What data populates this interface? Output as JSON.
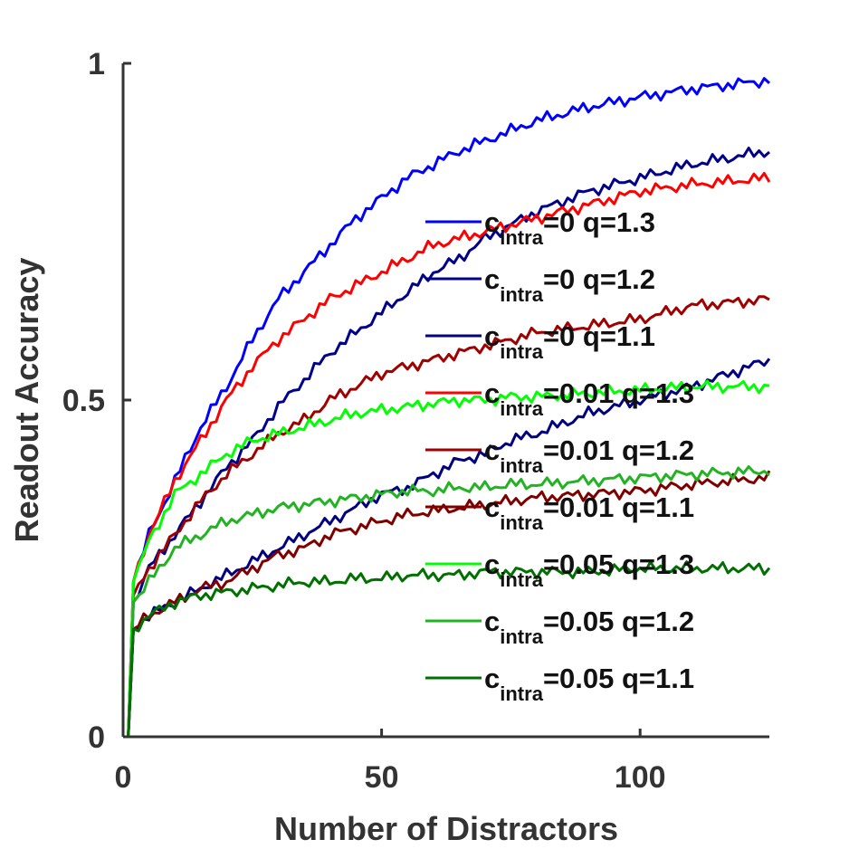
{
  "chart_data": {
    "type": "line",
    "title": "",
    "xlabel": "Number of Distractors",
    "ylabel": "Readout Accuracy",
    "xlim": [
      0,
      125
    ],
    "ylim": [
      0,
      1
    ],
    "xticks": [
      0,
      50,
      100
    ],
    "yticks": [
      0,
      0.5,
      1
    ],
    "grid": false,
    "legend_placement": "right",
    "series": [
      {
        "name_main": "c",
        "name_sub": "intra",
        "name_rest": "=0 q=1.3",
        "color": "#0000ff",
        "points": [
          [
            1,
            0
          ],
          [
            2,
            0.23
          ],
          [
            5,
            0.3
          ],
          [
            10,
            0.38
          ],
          [
            15,
            0.46
          ],
          [
            20,
            0.52
          ],
          [
            25,
            0.59
          ],
          [
            30,
            0.65
          ],
          [
            35,
            0.69
          ],
          [
            40,
            0.73
          ],
          [
            45,
            0.77
          ],
          [
            50,
            0.8
          ],
          [
            55,
            0.83
          ],
          [
            60,
            0.85
          ],
          [
            65,
            0.87
          ],
          [
            70,
            0.885
          ],
          [
            75,
            0.9
          ],
          [
            80,
            0.915
          ],
          [
            90,
            0.935
          ],
          [
            100,
            0.95
          ],
          [
            110,
            0.962
          ],
          [
            125,
            0.975
          ]
        ]
      },
      {
        "name_main": "c",
        "name_sub": "intra",
        "name_rest": "=0 q=1.2",
        "color": "#00008b",
        "points": [
          [
            1,
            0
          ],
          [
            2,
            0.2
          ],
          [
            5,
            0.25
          ],
          [
            10,
            0.3
          ],
          [
            15,
            0.35
          ],
          [
            20,
            0.4
          ],
          [
            25,
            0.44
          ],
          [
            30,
            0.49
          ],
          [
            35,
            0.53
          ],
          [
            40,
            0.57
          ],
          [
            45,
            0.6
          ],
          [
            50,
            0.63
          ],
          [
            55,
            0.66
          ],
          [
            60,
            0.69
          ],
          [
            65,
            0.71
          ],
          [
            70,
            0.74
          ],
          [
            75,
            0.76
          ],
          [
            80,
            0.78
          ],
          [
            90,
            0.81
          ],
          [
            100,
            0.83
          ],
          [
            110,
            0.85
          ],
          [
            125,
            0.87
          ]
        ]
      },
      {
        "name_main": "c",
        "name_sub": "intra",
        "name_rest": "=0 q=1.1",
        "color": "#000080",
        "points": [
          [
            1,
            0
          ],
          [
            2,
            0.16
          ],
          [
            5,
            0.18
          ],
          [
            10,
            0.2
          ],
          [
            15,
            0.22
          ],
          [
            20,
            0.24
          ],
          [
            25,
            0.26
          ],
          [
            30,
            0.28
          ],
          [
            35,
            0.3
          ],
          [
            40,
            0.32
          ],
          [
            45,
            0.34
          ],
          [
            50,
            0.36
          ],
          [
            55,
            0.37
          ],
          [
            60,
            0.39
          ],
          [
            65,
            0.41
          ],
          [
            70,
            0.42
          ],
          [
            75,
            0.44
          ],
          [
            80,
            0.45
          ],
          [
            90,
            0.48
          ],
          [
            100,
            0.5
          ],
          [
            110,
            0.52
          ],
          [
            125,
            0.56
          ]
        ]
      },
      {
        "name_main": "c",
        "name_sub": "intra",
        "name_rest": "=0.01 q=1.3",
        "color": "#ff0000",
        "points": [
          [
            1,
            0
          ],
          [
            2,
            0.23
          ],
          [
            5,
            0.3
          ],
          [
            10,
            0.38
          ],
          [
            15,
            0.44
          ],
          [
            20,
            0.5
          ],
          [
            25,
            0.55
          ],
          [
            30,
            0.59
          ],
          [
            35,
            0.62
          ],
          [
            40,
            0.65
          ],
          [
            45,
            0.67
          ],
          [
            50,
            0.69
          ],
          [
            55,
            0.71
          ],
          [
            60,
            0.73
          ],
          [
            65,
            0.74
          ],
          [
            70,
            0.75
          ],
          [
            75,
            0.76
          ],
          [
            80,
            0.77
          ],
          [
            90,
            0.79
          ],
          [
            100,
            0.81
          ],
          [
            110,
            0.82
          ],
          [
            125,
            0.83
          ]
        ]
      },
      {
        "name_main": "c",
        "name_sub": "intra",
        "name_rest": "=0.01 q=1.2",
        "color": "#a00000",
        "points": [
          [
            1,
            0
          ],
          [
            2,
            0.21
          ],
          [
            5,
            0.25
          ],
          [
            10,
            0.3
          ],
          [
            15,
            0.35
          ],
          [
            20,
            0.39
          ],
          [
            25,
            0.42
          ],
          [
            30,
            0.45
          ],
          [
            35,
            0.47
          ],
          [
            40,
            0.5
          ],
          [
            45,
            0.52
          ],
          [
            50,
            0.54
          ],
          [
            55,
            0.55
          ],
          [
            60,
            0.56
          ],
          [
            65,
            0.57
          ],
          [
            70,
            0.58
          ],
          [
            75,
            0.59
          ],
          [
            80,
            0.6
          ],
          [
            90,
            0.61
          ],
          [
            100,
            0.62
          ],
          [
            110,
            0.64
          ],
          [
            125,
            0.65
          ]
        ]
      },
      {
        "name_main": "c",
        "name_sub": "intra",
        "name_rest": "=0.01 q=1.1",
        "color": "#800000",
        "points": [
          [
            1,
            0
          ],
          [
            2,
            0.16
          ],
          [
            5,
            0.18
          ],
          [
            10,
            0.2
          ],
          [
            15,
            0.22
          ],
          [
            20,
            0.23
          ],
          [
            25,
            0.25
          ],
          [
            30,
            0.27
          ],
          [
            35,
            0.28
          ],
          [
            40,
            0.3
          ],
          [
            45,
            0.31
          ],
          [
            50,
            0.32
          ],
          [
            55,
            0.33
          ],
          [
            60,
            0.335
          ],
          [
            65,
            0.34
          ],
          [
            70,
            0.345
          ],
          [
            75,
            0.35
          ],
          [
            80,
            0.355
          ],
          [
            90,
            0.36
          ],
          [
            100,
            0.365
          ],
          [
            110,
            0.375
          ],
          [
            125,
            0.385
          ]
        ]
      },
      {
        "name_main": "c",
        "name_sub": "intra",
        "name_rest": "=0.05 q=1.3",
        "color": "#00ff00",
        "points": [
          [
            1,
            0
          ],
          [
            2,
            0.23
          ],
          [
            5,
            0.29
          ],
          [
            10,
            0.36
          ],
          [
            15,
            0.39
          ],
          [
            20,
            0.42
          ],
          [
            25,
            0.44
          ],
          [
            30,
            0.45
          ],
          [
            35,
            0.46
          ],
          [
            40,
            0.47
          ],
          [
            45,
            0.48
          ],
          [
            50,
            0.485
          ],
          [
            55,
            0.49
          ],
          [
            60,
            0.495
          ],
          [
            65,
            0.5
          ],
          [
            70,
            0.5
          ],
          [
            75,
            0.505
          ],
          [
            80,
            0.505
          ],
          [
            90,
            0.51
          ],
          [
            100,
            0.515
          ],
          [
            110,
            0.52
          ],
          [
            125,
            0.52
          ]
        ]
      },
      {
        "name_main": "c",
        "name_sub": "intra",
        "name_rest": "=0.05 q=1.2",
        "color": "#22b322",
        "points": [
          [
            1,
            0
          ],
          [
            2,
            0.2
          ],
          [
            5,
            0.23
          ],
          [
            10,
            0.28
          ],
          [
            15,
            0.3
          ],
          [
            20,
            0.32
          ],
          [
            25,
            0.33
          ],
          [
            30,
            0.34
          ],
          [
            35,
            0.345
          ],
          [
            40,
            0.35
          ],
          [
            45,
            0.355
          ],
          [
            50,
            0.36
          ],
          [
            55,
            0.365
          ],
          [
            60,
            0.365
          ],
          [
            65,
            0.37
          ],
          [
            70,
            0.37
          ],
          [
            75,
            0.375
          ],
          [
            80,
            0.375
          ],
          [
            90,
            0.38
          ],
          [
            100,
            0.385
          ],
          [
            110,
            0.39
          ],
          [
            125,
            0.395
          ]
        ]
      },
      {
        "name_main": "c",
        "name_sub": "intra",
        "name_rest": "=0.05 q=1.1",
        "color": "#007000",
        "points": [
          [
            1,
            0
          ],
          [
            2,
            0.16
          ],
          [
            5,
            0.18
          ],
          [
            10,
            0.2
          ],
          [
            15,
            0.21
          ],
          [
            20,
            0.215
          ],
          [
            25,
            0.22
          ],
          [
            30,
            0.225
          ],
          [
            35,
            0.23
          ],
          [
            40,
            0.23
          ],
          [
            45,
            0.235
          ],
          [
            50,
            0.235
          ],
          [
            55,
            0.24
          ],
          [
            60,
            0.24
          ],
          [
            65,
            0.24
          ],
          [
            70,
            0.245
          ],
          [
            75,
            0.245
          ],
          [
            80,
            0.245
          ],
          [
            90,
            0.245
          ],
          [
            100,
            0.25
          ],
          [
            110,
            0.25
          ],
          [
            125,
            0.25
          ]
        ]
      }
    ]
  }
}
